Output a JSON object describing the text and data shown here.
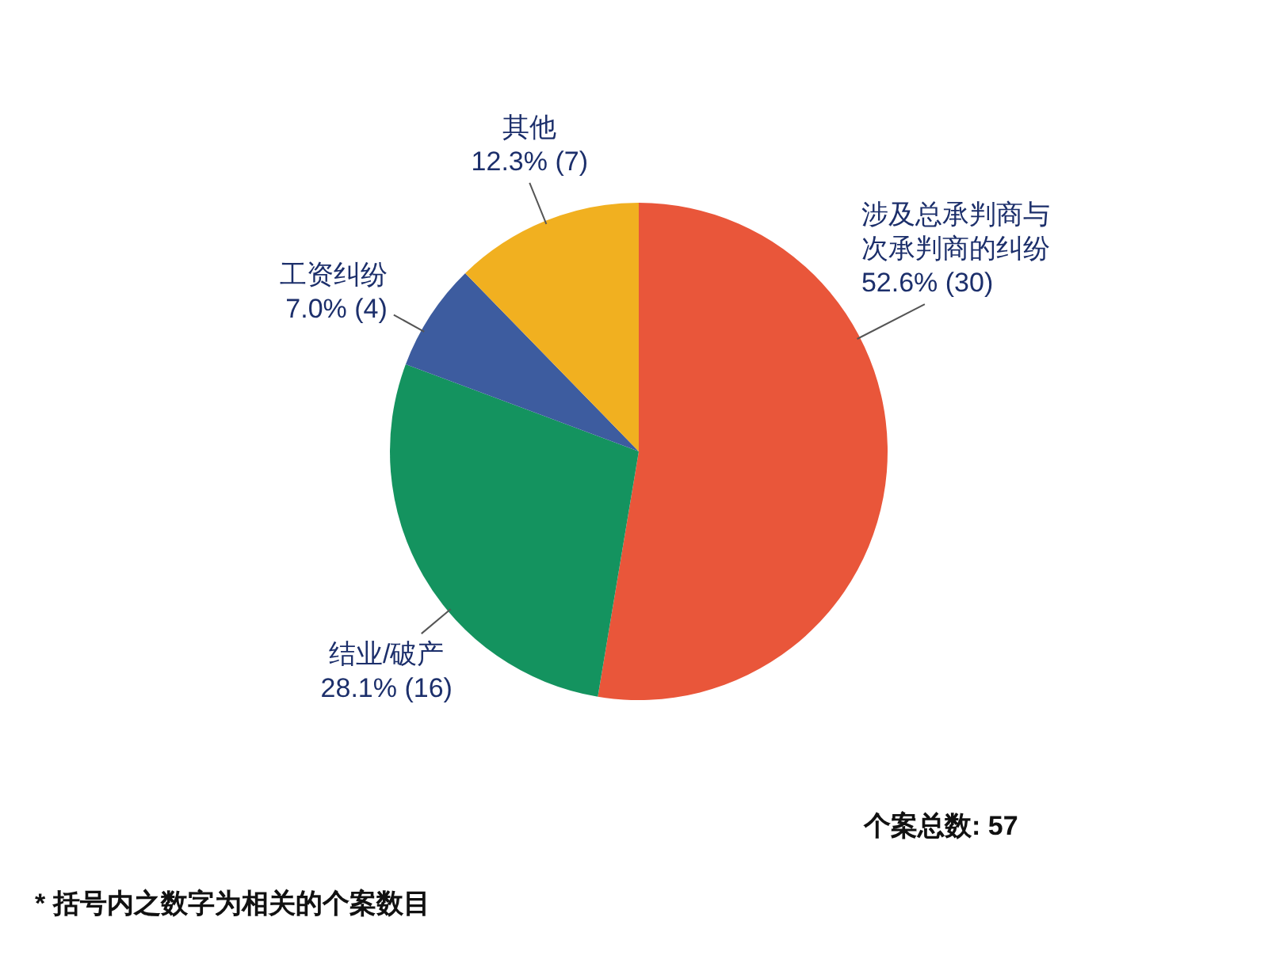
{
  "chart_data": {
    "type": "pie",
    "categories": [
      "涉及总承判商与次承判商的纠纷",
      "结业/破产",
      "工资纠纷",
      "其他"
    ],
    "values": [
      30,
      16,
      4,
      7
    ],
    "colors": [
      "#e9563a",
      "#14935f",
      "#3d5c9f",
      "#f1b020"
    ],
    "value_labels": [
      "52.6% (30)",
      "28.1% (16)",
      "7.0% (4)",
      "12.3% (7)"
    ],
    "annotations": [
      "个案总数: 57",
      "* 括号内之数字为相关的个案数目"
    ]
  }
}
